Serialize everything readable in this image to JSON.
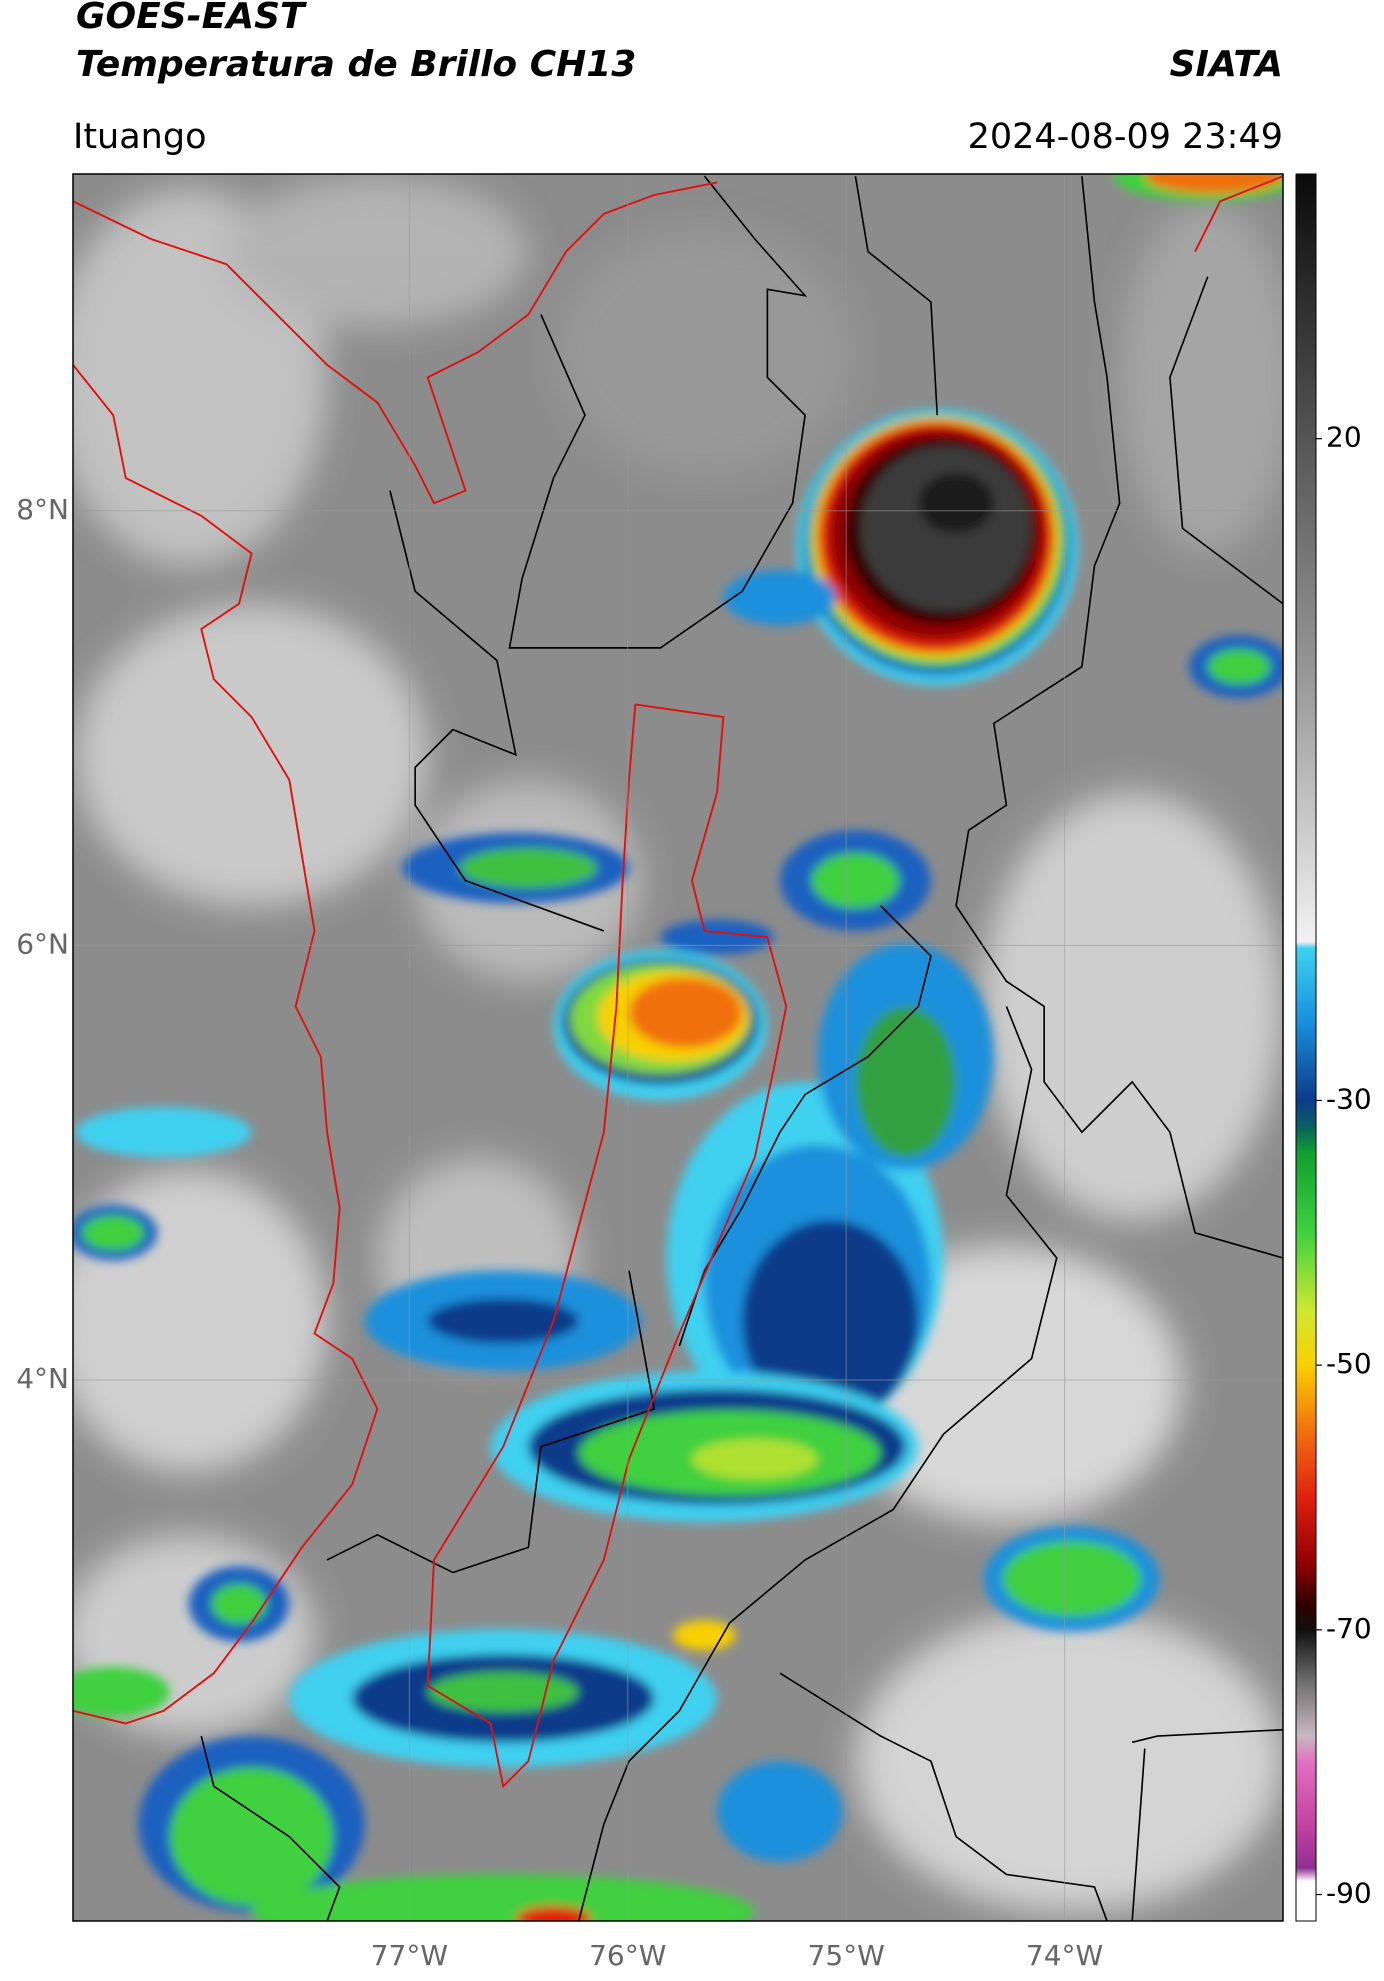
{
  "header": {
    "title": "GOES-EAST",
    "subtitle": "Temperatura de Brillo CH13",
    "source": "SIATA",
    "location": "Ituango",
    "datetime": "2024-08-09 23:49"
  },
  "map": {
    "latlim": [
      1.51,
      9.55
    ],
    "lonlim": [
      -78.54,
      -73.0
    ],
    "lat_ticks": [
      {
        "value": 8,
        "label": "8°N"
      },
      {
        "value": 6,
        "label": "6°N"
      },
      {
        "value": 4,
        "label": "4°N"
      }
    ],
    "lon_ticks": [
      {
        "value": -77,
        "label": "77°W"
      },
      {
        "value": -76,
        "label": "76°W"
      },
      {
        "value": -75,
        "label": "75°W"
      },
      {
        "value": -74,
        "label": "74°W"
      }
    ],
    "grid": true
  },
  "colorbar": {
    "lim": [
      40,
      -92
    ],
    "ticks": [
      20,
      -30,
      -50,
      -70,
      -90
    ],
    "colormap": [
      {
        "value": 40,
        "color": "#0a0a0a"
      },
      {
        "value": 20,
        "color": "#555555"
      },
      {
        "value": 0,
        "color": "#a0a0a0"
      },
      {
        "value": -18,
        "color": "#f2f2f2"
      },
      {
        "value": -18.5,
        "color": "#40d0f0"
      },
      {
        "value": -24,
        "color": "#1a90dc"
      },
      {
        "value": -30,
        "color": "#0d3b8a"
      },
      {
        "value": -32,
        "color": "#0a6060"
      },
      {
        "value": -34,
        "color": "#10a030"
      },
      {
        "value": -40,
        "color": "#40d040"
      },
      {
        "value": -46,
        "color": "#d0e830"
      },
      {
        "value": -50,
        "color": "#f8d000"
      },
      {
        "value": -55,
        "color": "#f07010"
      },
      {
        "value": -60,
        "color": "#e02010"
      },
      {
        "value": -65,
        "color": "#900000"
      },
      {
        "value": -68,
        "color": "#300000"
      },
      {
        "value": -70,
        "color": "#101010"
      },
      {
        "value": -74,
        "color": "#707070"
      },
      {
        "value": -78,
        "color": "#c8b8c0"
      },
      {
        "value": -80,
        "color": "#e070c0"
      },
      {
        "value": -85,
        "color": "#c040a0"
      },
      {
        "value": -88,
        "color": "#903090"
      },
      {
        "value": -89,
        "color": "#ffffff"
      },
      {
        "value": -92,
        "color": "#ffffff"
      }
    ]
  }
}
